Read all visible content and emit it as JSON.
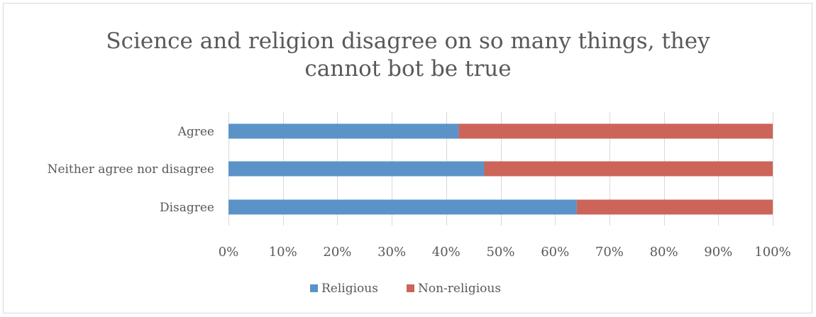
{
  "chart_data": {
    "type": "bar",
    "orientation": "horizontal",
    "stacked": "percent",
    "title_lines": [
      "Science and religion disagree on so many things, they",
      "cannot bot be true"
    ],
    "categories": [
      "Agree",
      "Neither agree nor disagree",
      "Disagree"
    ],
    "series": [
      {
        "name": "Religious",
        "color": "#5b93c9",
        "values": [
          0.423,
          0.47,
          0.64
        ]
      },
      {
        "name": "Non-religious",
        "color": "#cd645a",
        "values": [
          0.577,
          0.53,
          0.36
        ]
      }
    ],
    "x_ticks": [
      "0%",
      "10%",
      "20%",
      "30%",
      "40%",
      "50%",
      "60%",
      "70%",
      "80%",
      "90%",
      "100%"
    ],
    "xlim": [
      0,
      1
    ],
    "grid": true,
    "legend_position": "bottom"
  }
}
